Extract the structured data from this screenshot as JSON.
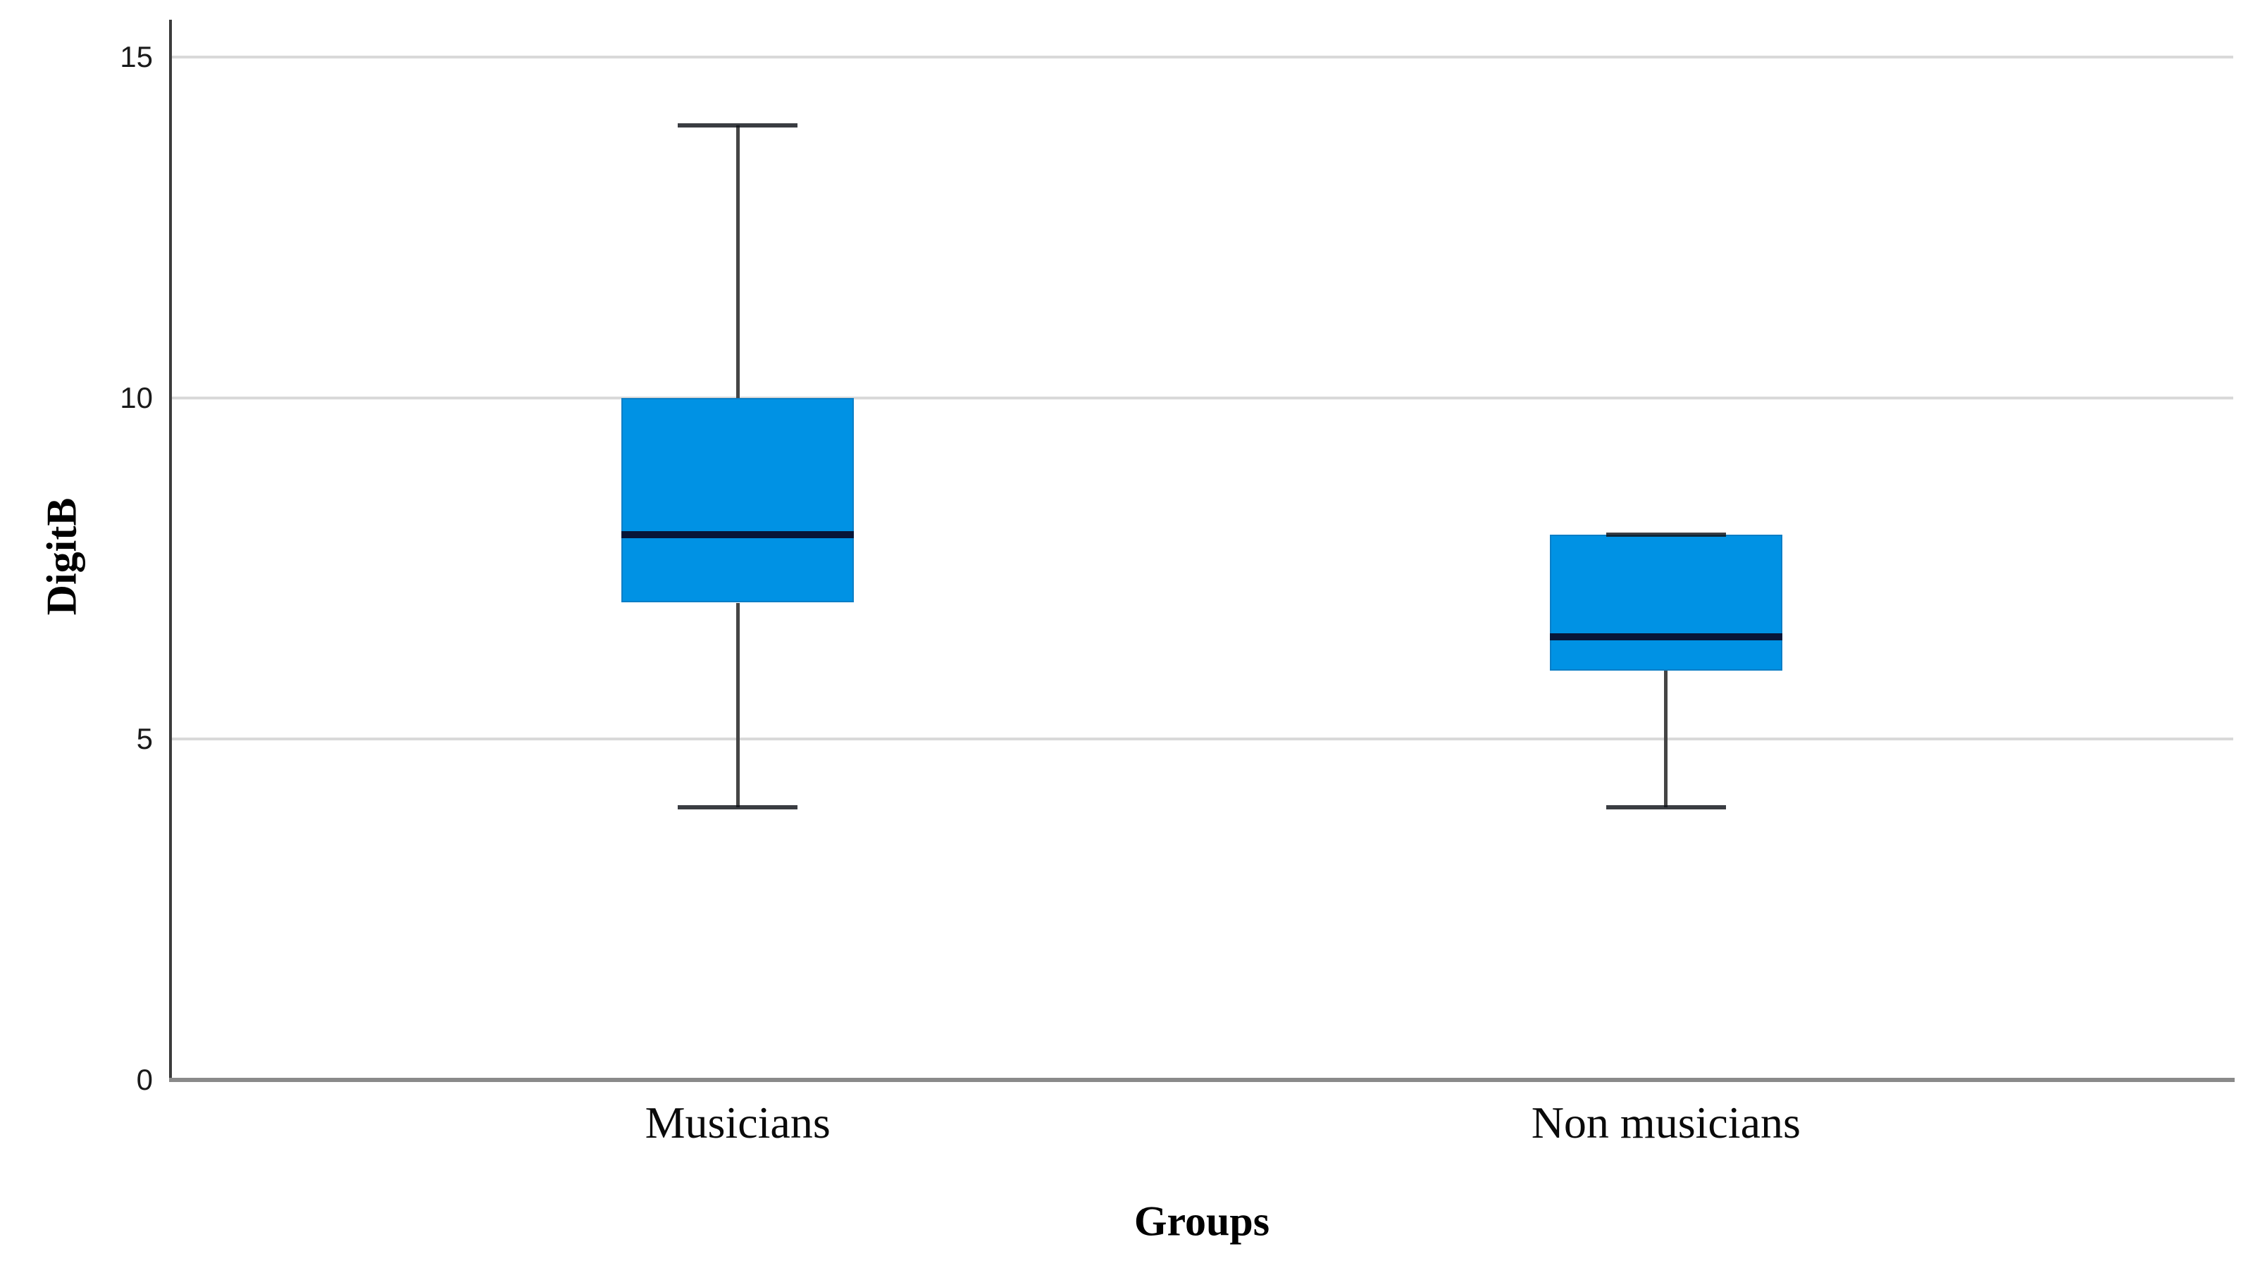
{
  "chart_data": {
    "type": "boxplot",
    "title": "",
    "xlabel": "Groups",
    "ylabel": "DigitB",
    "categories": [
      "Musicians",
      "Non musicians"
    ],
    "series": [
      {
        "name": "Musicians",
        "min": 4,
        "q1": 7,
        "median": 8,
        "q3": 10,
        "max": 14
      },
      {
        "name": "Non musicians",
        "min": 4,
        "q1": 6,
        "median": 6.5,
        "q3": 8,
        "max": 8
      }
    ],
    "yticks": [
      0,
      5,
      10,
      15
    ],
    "ylim": [
      0,
      15.55
    ],
    "grid": "horizontal-only",
    "legend": "none",
    "colors": {
      "box_fill": "#0092E4",
      "box_border": "#0b7ec6",
      "median": "#081638",
      "whisker": "#454545",
      "cap": "rgba(15,18,24,0.82)",
      "gridline": "#d9d9d9",
      "y_axis": "#3c3c3c",
      "x_axis": "#8a8a8a",
      "text": "#000000"
    }
  }
}
